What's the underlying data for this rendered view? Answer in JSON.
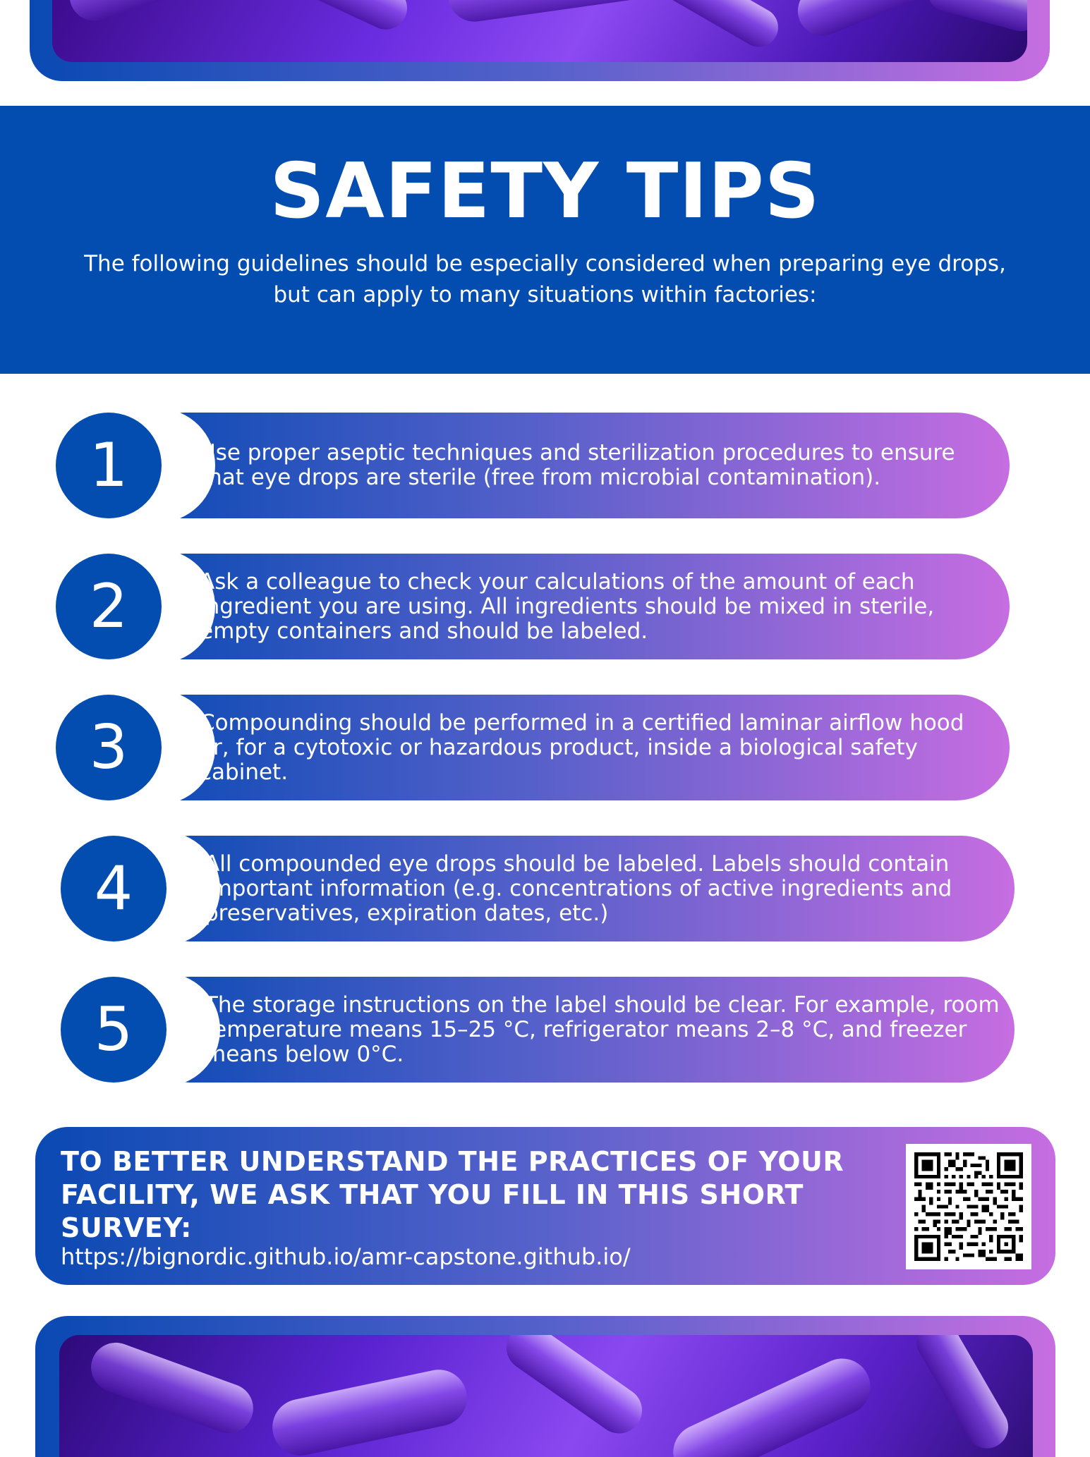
{
  "header": {
    "title": "SAFETY TIPS",
    "subtitle": "The following guidelines should be especially considered when preparing eye drops, but can apply to many situations within factories:"
  },
  "tips": [
    {
      "number": "1",
      "text": "Use proper aseptic techniques and sterilization procedures to ensure that eye drops are sterile (free from microbial contamination)."
    },
    {
      "number": "2",
      "text": "Ask a colleague to check your calculations of the amount of each ingredient you are using. All ingredients should be mixed in sterile, empty containers and should be labeled."
    },
    {
      "number": "3",
      "text": "Compounding should be performed in a certified laminar airflow hood or, for a cytotoxic or hazardous product, inside a biological safety cabinet."
    },
    {
      "number": "4",
      "text": "All compounded eye drops should be labeled. Labels should contain important information (e.g. concentrations of active ingredients and preservatives, expiration dates, etc.)"
    },
    {
      "number": "5",
      "text": "The storage instructions on the label should be clear. For example, room temperature means 15–25 °C, refrigerator means 2–8 °C, and freezer means below 0°C."
    }
  ],
  "survey": {
    "heading": "TO BETTER UNDERSTAND THE PRACTICES OF YOUR FACILITY, WE ASK THAT YOU FILL IN THIS SHORT SURVEY:",
    "url": "https://bignordic.github.io/amr-capstone.github.io/"
  },
  "colors": {
    "primary_blue": "#034db1",
    "gradient_start": "#0a49b3",
    "gradient_end": "#c66de1"
  },
  "icons": {
    "qr": "qr-code-icon"
  }
}
